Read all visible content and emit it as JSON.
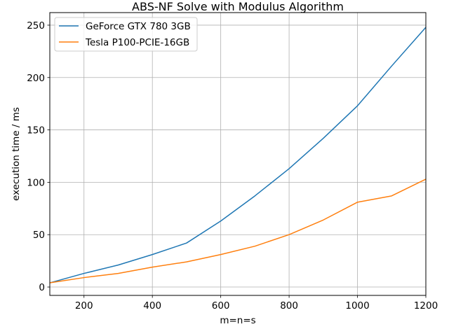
{
  "chart_data": {
    "type": "line",
    "title": "ABS-NF Solve with Modulus Algorithm",
    "xlabel": "m=n=s",
    "ylabel": "execution time / ms",
    "xlim": [
      100,
      1200
    ],
    "ylim": [
      -8,
      262
    ],
    "xticks": [
      200,
      400,
      600,
      800,
      1000,
      1200
    ],
    "yticks": [
      0,
      50,
      100,
      150,
      200,
      250
    ],
    "grid": true,
    "legend_position": "upper-left",
    "x": [
      100,
      200,
      300,
      400,
      500,
      600,
      700,
      800,
      900,
      1000,
      1100,
      1200
    ],
    "series": [
      {
        "name": "GeForce GTX 780 3GB",
        "color": "#1f77b4",
        "values": [
          4,
          13,
          21,
          31,
          42,
          63,
          87,
          113,
          142,
          173,
          211,
          248
        ]
      },
      {
        "name": "Tesla P100-PCIE-16GB",
        "color": "#ff7f0e",
        "values": [
          4,
          9,
          13,
          19,
          24,
          31,
          39,
          50,
          64,
          81,
          87,
          103
        ]
      }
    ]
  }
}
